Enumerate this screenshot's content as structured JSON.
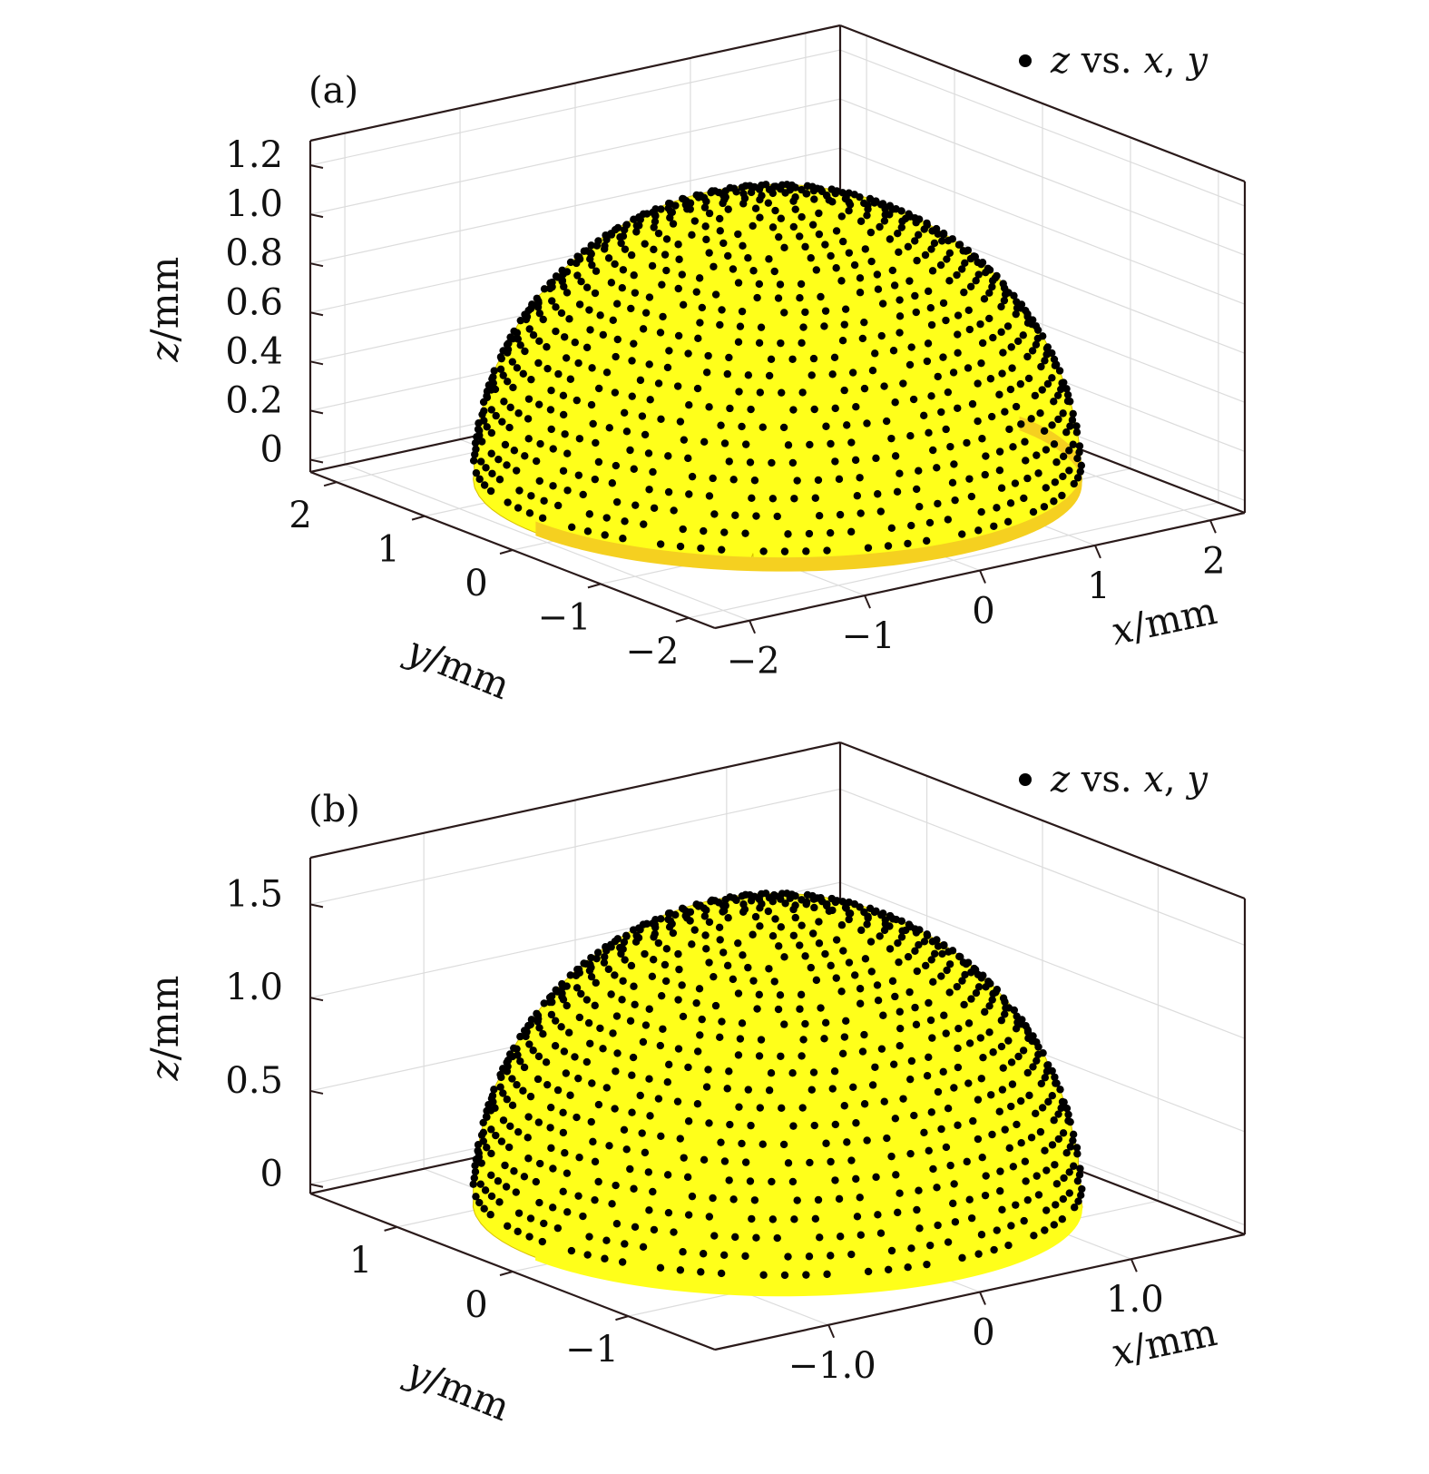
{
  "chart_data": [
    {
      "panel_label": "(a)",
      "type": "scatter3d",
      "surface": "hemispherical dome",
      "legend": {
        "marker": "•",
        "label": "z vs. x, y",
        "placement": "top-right"
      },
      "xlabel": {
        "var": "x",
        "unit": "/mm"
      },
      "ylabel": {
        "var": "y",
        "unit": "/mm"
      },
      "zlabel": {
        "var": "z",
        "unit": "/mm"
      },
      "x_ticks": [
        -2,
        -1,
        0,
        1,
        2
      ],
      "x_tick_labels": [
        "−2",
        "−1",
        "0",
        "1",
        "2"
      ],
      "y_ticks": [
        -2,
        -1,
        0,
        1,
        2
      ],
      "y_tick_labels": [
        "−2",
        "−1",
        "0",
        "1",
        "2"
      ],
      "z_ticks": [
        0,
        0.2,
        0.4,
        0.6,
        0.8,
        1.0,
        1.2
      ],
      "z_tick_labels": [
        "0",
        "0.2",
        "0.4",
        "0.6",
        "0.8",
        "1.0",
        "1.2"
      ],
      "xlim": [
        -2.3,
        2.3
      ],
      "ylim": [
        -2.3,
        2.3
      ],
      "zlim": [
        -0.05,
        1.3
      ],
      "dome": {
        "radius": 2.1,
        "height": 1.15
      },
      "grid": true,
      "colors": {
        "surface": "#ffff1a",
        "surface_base": "#f5d020",
        "points": "#000000"
      }
    },
    {
      "panel_label": "(b)",
      "type": "scatter3d",
      "surface": "hemispherical dome",
      "legend": {
        "marker": "•",
        "label": "z vs. x, y",
        "placement": "top-right"
      },
      "xlabel": {
        "var": "x",
        "unit": "/mm"
      },
      "ylabel": {
        "var": "y",
        "unit": "/mm"
      },
      "zlabel": {
        "var": "z",
        "unit": "/mm"
      },
      "x_ticks": [
        -1.0,
        0,
        1.0
      ],
      "x_tick_labels": [
        "−1.0",
        "0",
        "1.0"
      ],
      "y_ticks": [
        -1,
        0,
        1
      ],
      "y_tick_labels": [
        "−1",
        "0",
        "1"
      ],
      "z_ticks": [
        0,
        0.5,
        1.0,
        1.5
      ],
      "z_tick_labels": [
        "0",
        "0.5",
        "1.0",
        "1.5"
      ],
      "xlim": [
        -1.75,
        1.75
      ],
      "ylim": [
        -1.75,
        1.75
      ],
      "zlim": [
        -0.05,
        1.75
      ],
      "dome": {
        "radius": 1.6,
        "height": 1.6
      },
      "grid": true,
      "colors": {
        "surface": "#ffff1a",
        "surface_base": "#ffff1a",
        "points": "#000000"
      }
    }
  ]
}
